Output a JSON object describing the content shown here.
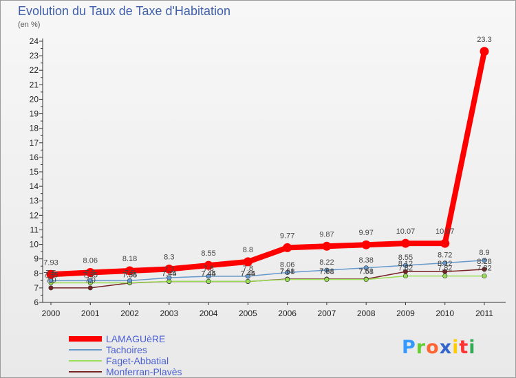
{
  "title": "Evolution du Taux de Taxe d'Habitation",
  "subtitle": "(en %)",
  "chart_data": {
    "type": "line",
    "title": "Evolution du Taux de Taxe d'Habitation",
    "ylabel": "(en %)",
    "xlabel": "",
    "ylim": [
      6,
      24
    ],
    "yticks": [
      6,
      7,
      8,
      9,
      10,
      11,
      12,
      13,
      14,
      15,
      16,
      17,
      18,
      19,
      20,
      21,
      22,
      23,
      24
    ],
    "categories": [
      "2000",
      "2001",
      "2002",
      "2003",
      "2004",
      "2005",
      "2006",
      "2007",
      "2008",
      "2009",
      "2010",
      "2011"
    ],
    "grid": false,
    "legend_position": "bottom-left",
    "series": [
      {
        "name": "LAMAGUèRE",
        "color": "#ff0000",
        "values": [
          7.93,
          8.06,
          8.18,
          8.3,
          8.55,
          8.8,
          9.77,
          9.87,
          9.97,
          10.07,
          10.07,
          23.3
        ],
        "labels": [
          "7.93",
          "8.06",
          "8.18",
          "8.3",
          "8.55",
          "8.8",
          "9.77",
          "9.87",
          "9.97",
          "10.07",
          "10.07",
          "23.3"
        ]
      },
      {
        "name": "Tachoires",
        "color": "#6699cc",
        "values": [
          7.5,
          7.5,
          7.5,
          7.7,
          7.8,
          7.8,
          8.06,
          8.22,
          8.38,
          8.55,
          8.72,
          8.9
        ],
        "labels": [
          "7.5",
          "7.5",
          "7.5",
          "7.7",
          "7.8",
          "7.8",
          "8.06",
          "8.22",
          "8.38",
          "8.55",
          "8.72",
          "8.9"
        ]
      },
      {
        "name": "Faget-Abbatial",
        "color": "#99dd55",
        "values": [
          7.35,
          7.35,
          7.35,
          7.45,
          7.45,
          7.45,
          7.58,
          7.58,
          7.58,
          7.82,
          7.82,
          7.82
        ],
        "labels": [
          "7.35",
          "7.35",
          "7.35",
          "7.45",
          "7.45",
          "7.45",
          "7.58",
          "7.58",
          "7.58",
          "7.82",
          "7.82",
          "7.82"
        ]
      },
      {
        "name": "Monferran-Plavès",
        "color": "#772222",
        "values": [
          7.0,
          7.0,
          7.34,
          7.44,
          7.44,
          7.44,
          7.61,
          7.61,
          7.61,
          8.12,
          8.12,
          8.28
        ],
        "labels": [
          "7.0",
          "7.0",
          "7.34",
          "7.44",
          "7.44",
          "7.44",
          "7.61",
          "7.61",
          "7.61",
          "8.12",
          "8.12",
          "8.28"
        ]
      }
    ]
  },
  "logo": {
    "letters": [
      "P",
      "r",
      "o",
      "x",
      "i",
      "t",
      "i"
    ],
    "colors": [
      "#3399ff",
      "#66cc33",
      "#ff6633",
      "#3366cc",
      "#ffcc00",
      "#ff3333",
      "#33aa55"
    ]
  }
}
